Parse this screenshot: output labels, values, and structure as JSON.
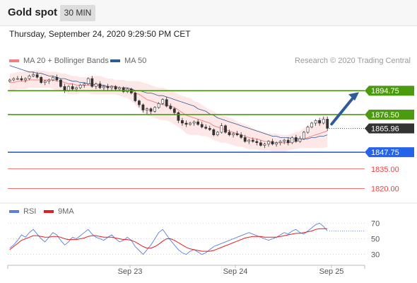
{
  "header": {
    "title": "Gold spot",
    "timeframe": "30 MIN",
    "timestamp": "Thursday, September 24, 2020 9:29:50 PM CET"
  },
  "legend": {
    "ma20": "MA 20 + Bollinger Bands",
    "ma50": "MA 50",
    "credit": "Research © 2020 Trading Central",
    "rsi": "RSI",
    "ma9": "9MA"
  },
  "colors": {
    "ma20": "#f08080",
    "ma50": "#2e5b9a",
    "band": "#fde1e1",
    "resistance": "#4c9a10",
    "support": "#2563eb",
    "support_red": "#f04040",
    "current": "#333333",
    "arrow": "#2e5b9a",
    "rsi": "#5b7fe0",
    "rsi_ma": "#e02020"
  },
  "chart_data": [
    {
      "type": "line",
      "name": "price",
      "y_range": [
        1810,
        1910
      ],
      "levels": [
        {
          "name": "resistance-2",
          "value": 1894.75,
          "label": "1894.75",
          "color": "#4c9a10",
          "style": "solid",
          "label_bg": true
        },
        {
          "name": "resistance-1",
          "value": 1876.5,
          "label": "1876.50",
          "color": "#4c9a10",
          "style": "solid",
          "label_bg": true
        },
        {
          "name": "current-price",
          "value": 1865.96,
          "label": "1865.96",
          "color": "#333333",
          "style": "dotted",
          "label_bg": true
        },
        {
          "name": "pivot",
          "value": 1847.75,
          "label": "1847.75",
          "color": "#2563eb",
          "style": "solid",
          "label_bg": true
        },
        {
          "name": "support-1",
          "value": 1835.0,
          "label": "1835.00",
          "color": "#f04040",
          "style": "solid",
          "label_bg": false
        },
        {
          "name": "support-2",
          "value": 1820.0,
          "label": "1820.00",
          "color": "#f04040",
          "style": "solid",
          "label_bg": false
        }
      ],
      "candles": [
        [
          1902,
          1904,
          1901,
          1903
        ],
        [
          1903,
          1905,
          1902,
          1904
        ],
        [
          1904,
          1906,
          1903,
          1904
        ],
        [
          1904,
          1906,
          1902,
          1903
        ],
        [
          1903,
          1905,
          1901,
          1904
        ],
        [
          1904,
          1907,
          1903,
          1906
        ],
        [
          1906,
          1909,
          1905,
          1907
        ],
        [
          1907,
          1909,
          1904,
          1905
        ],
        [
          1905,
          1906,
          1900,
          1901
        ],
        [
          1901,
          1903,
          1899,
          1902
        ],
        [
          1902,
          1904,
          1900,
          1903
        ],
        [
          1903,
          1906,
          1902,
          1905
        ],
        [
          1905,
          1907,
          1902,
          1903
        ],
        [
          1903,
          1904,
          1897,
          1898
        ],
        [
          1898,
          1900,
          1893,
          1895
        ],
        [
          1895,
          1899,
          1894,
          1898
        ],
        [
          1898,
          1900,
          1895,
          1896
        ],
        [
          1896,
          1898,
          1894,
          1897
        ],
        [
          1897,
          1900,
          1896,
          1899
        ],
        [
          1899,
          1901,
          1897,
          1900
        ],
        [
          1900,
          1905,
          1899,
          1904
        ],
        [
          1904,
          1906,
          1897,
          1898
        ],
        [
          1898,
          1901,
          1896,
          1900
        ],
        [
          1900,
          1902,
          1896,
          1897
        ],
        [
          1897,
          1899,
          1895,
          1898
        ],
        [
          1898,
          1900,
          1895,
          1897
        ],
        [
          1897,
          1899,
          1895,
          1898
        ],
        [
          1898,
          1899,
          1895,
          1896
        ],
        [
          1896,
          1898,
          1895,
          1897
        ],
        [
          1897,
          1898,
          1893,
          1894
        ],
        [
          1894,
          1897,
          1893,
          1896
        ],
        [
          1896,
          1897,
          1892,
          1893
        ],
        [
          1893,
          1894,
          1886,
          1887
        ],
        [
          1887,
          1888,
          1882,
          1884
        ],
        [
          1884,
          1885,
          1878,
          1880
        ],
        [
          1880,
          1882,
          1877,
          1881
        ],
        [
          1881,
          1882,
          1877,
          1879
        ],
        [
          1879,
          1883,
          1878,
          1882
        ],
        [
          1882,
          1886,
          1881,
          1885
        ],
        [
          1885,
          1889,
          1884,
          1888
        ],
        [
          1888,
          1890,
          1882,
          1883
        ],
        [
          1883,
          1885,
          1880,
          1881
        ],
        [
          1881,
          1882,
          1876,
          1878
        ],
        [
          1878,
          1879,
          1870,
          1872
        ],
        [
          1872,
          1874,
          1868,
          1870
        ],
        [
          1870,
          1872,
          1867,
          1869
        ],
        [
          1869,
          1871,
          1868,
          1870
        ],
        [
          1870,
          1872,
          1868,
          1871
        ],
        [
          1871,
          1873,
          1868,
          1869
        ],
        [
          1869,
          1871,
          1866,
          1867
        ],
        [
          1867,
          1869,
          1865,
          1866
        ],
        [
          1866,
          1868,
          1864,
          1865
        ],
        [
          1865,
          1866,
          1860,
          1861
        ],
        [
          1861,
          1864,
          1860,
          1863
        ],
        [
          1863,
          1870,
          1862,
          1868
        ],
        [
          1868,
          1869,
          1862,
          1863
        ],
        [
          1863,
          1865,
          1860,
          1861
        ],
        [
          1861,
          1863,
          1859,
          1862
        ],
        [
          1862,
          1864,
          1860,
          1861
        ],
        [
          1861,
          1863,
          1858,
          1859
        ],
        [
          1859,
          1861,
          1855,
          1856
        ],
        [
          1856,
          1858,
          1854,
          1857
        ],
        [
          1857,
          1859,
          1855,
          1856
        ],
        [
          1856,
          1858,
          1853,
          1855
        ],
        [
          1855,
          1857,
          1852,
          1853
        ],
        [
          1853,
          1855,
          1851,
          1854
        ],
        [
          1854,
          1857,
          1852,
          1856
        ],
        [
          1856,
          1858,
          1853,
          1854
        ],
        [
          1854,
          1856,
          1852,
          1855
        ],
        [
          1855,
          1857,
          1853,
          1856
        ],
        [
          1856,
          1858,
          1854,
          1857
        ],
        [
          1857,
          1859,
          1853,
          1855
        ],
        [
          1855,
          1860,
          1854,
          1859
        ],
        [
          1859,
          1861,
          1855,
          1856
        ],
        [
          1856,
          1860,
          1855,
          1858
        ],
        [
          1858,
          1864,
          1857,
          1863
        ],
        [
          1863,
          1868,
          1862,
          1867
        ],
        [
          1867,
          1871,
          1866,
          1870
        ],
        [
          1870,
          1873,
          1868,
          1872
        ],
        [
          1872,
          1874,
          1868,
          1870
        ],
        [
          1870,
          1875,
          1869,
          1873
        ],
        [
          1873,
          1875,
          1864,
          1866
        ]
      ],
      "ma20": [
        1901,
        1901,
        1902,
        1902,
        1902,
        1903,
        1903,
        1903,
        1903,
        1903,
        1903,
        1903,
        1902,
        1902,
        1901,
        1900,
        1900,
        1899,
        1899,
        1899,
        1899,
        1899,
        1899,
        1899,
        1898,
        1898,
        1898,
        1898,
        1897,
        1897,
        1896,
        1895,
        1893,
        1892,
        1890,
        1888,
        1887,
        1886,
        1885,
        1884,
        1884,
        1883,
        1882,
        1880,
        1878,
        1876,
        1875,
        1874,
        1873,
        1872,
        1871,
        1870,
        1868,
        1867,
        1866,
        1865,
        1864,
        1863,
        1862,
        1861,
        1860,
        1859,
        1858,
        1858,
        1857,
        1856,
        1856,
        1855,
        1855,
        1855,
        1855,
        1855,
        1856,
        1856,
        1857,
        1858,
        1859,
        1860,
        1861,
        1862,
        1863,
        1864
      ],
      "ma50": [
        1914,
        1913,
        1912,
        1911,
        1910,
        1909,
        1909,
        1908,
        1908,
        1907,
        1906,
        1906,
        1905,
        1904,
        1904,
        1903,
        1902,
        1902,
        1901,
        1901,
        1900,
        1900,
        1899,
        1899,
        1899,
        1898,
        1898,
        1898,
        1897,
        1897,
        1897,
        1896,
        1895,
        1895,
        1894,
        1893,
        1893,
        1892,
        1891,
        1891,
        1890,
        1889,
        1888,
        1887,
        1886,
        1885,
        1884,
        1883,
        1881,
        1880,
        1879,
        1877,
        1876,
        1874,
        1873,
        1872,
        1871,
        1870,
        1869,
        1868,
        1867,
        1866,
        1865,
        1864,
        1863,
        1862,
        1861,
        1860,
        1860,
        1859,
        1859,
        1859,
        1858,
        1858,
        1858,
        1858,
        1858,
        1859,
        1859,
        1860,
        1860,
        1861
      ],
      "band_upper": [
        1908,
        1908,
        1909,
        1909,
        1910,
        1910,
        1910,
        1910,
        1910,
        1910,
        1909,
        1909,
        1909,
        1908,
        1908,
        1907,
        1906,
        1906,
        1905,
        1905,
        1905,
        1906,
        1906,
        1906,
        1905,
        1904,
        1904,
        1903,
        1903,
        1903,
        1902,
        1902,
        1902,
        1902,
        1901,
        1900,
        1899,
        1898,
        1897,
        1897,
        1896,
        1895,
        1894,
        1892,
        1891,
        1890,
        1889,
        1887,
        1886,
        1884,
        1882,
        1880,
        1879,
        1877,
        1876,
        1875,
        1874,
        1873,
        1871,
        1870,
        1869,
        1868,
        1866,
        1865,
        1864,
        1863,
        1862,
        1862,
        1862,
        1861,
        1861,
        1861,
        1862,
        1863,
        1864,
        1866,
        1868,
        1870,
        1872,
        1873,
        1875,
        1876
      ],
      "band_lower": [
        1895,
        1895,
        1896,
        1896,
        1896,
        1897,
        1897,
        1897,
        1897,
        1897,
        1897,
        1896,
        1895,
        1895,
        1894,
        1892,
        1892,
        1892,
        1893,
        1893,
        1893,
        1892,
        1892,
        1892,
        1892,
        1892,
        1892,
        1892,
        1891,
        1890,
        1889,
        1887,
        1884,
        1881,
        1878,
        1876,
        1875,
        1874,
        1873,
        1872,
        1872,
        1871,
        1869,
        1867,
        1865,
        1862,
        1861,
        1861,
        1861,
        1860,
        1860,
        1859,
        1857,
        1856,
        1855,
        1855,
        1854,
        1853,
        1852,
        1852,
        1851,
        1850,
        1850,
        1850,
        1849,
        1849,
        1849,
        1848,
        1848,
        1848,
        1848,
        1849,
        1850,
        1850,
        1851,
        1851,
        1851,
        1851,
        1851,
        1851,
        1851,
        1852
      ],
      "arrow_target": 1894.75
    },
    {
      "type": "line",
      "name": "rsi",
      "y_range": [
        16,
        84
      ],
      "ticks": [
        70,
        50,
        30
      ],
      "rsi": [
        38,
        42,
        48,
        55,
        52,
        58,
        62,
        56,
        50,
        46,
        52,
        58,
        55,
        48,
        42,
        46,
        52,
        50,
        54,
        58,
        62,
        56,
        52,
        50,
        48,
        52,
        55,
        50,
        46,
        48,
        52,
        48,
        40,
        35,
        30,
        36,
        42,
        50,
        58,
        62,
        55,
        48,
        42,
        36,
        32,
        30,
        34,
        36,
        33,
        30,
        32,
        36,
        40,
        42,
        44,
        46,
        48,
        50,
        52,
        54,
        56,
        58,
        56,
        54,
        52,
        50,
        48,
        50,
        52,
        55,
        58,
        56,
        60,
        62,
        58,
        56,
        60,
        64,
        68,
        70,
        66,
        60
      ],
      "rsi_ma": [
        36,
        40,
        44,
        48,
        50,
        52,
        54,
        54,
        53,
        52,
        52,
        53,
        53,
        52,
        50,
        49,
        49,
        49,
        50,
        51,
        53,
        54,
        54,
        53,
        52,
        52,
        52,
        51,
        50,
        49,
        49,
        48,
        46,
        43,
        40,
        38,
        38,
        40,
        43,
        47,
        50,
        50,
        48,
        45,
        42,
        39,
        37,
        36,
        35,
        34,
        34,
        34,
        35,
        37,
        39,
        41,
        43,
        45,
        47,
        49,
        51,
        52,
        53,
        53,
        53,
        52,
        52,
        52,
        52,
        53,
        54,
        55,
        56,
        57,
        57,
        58,
        59,
        60,
        62,
        63,
        63,
        63
      ]
    }
  ],
  "xaxis": {
    "labels": [
      "Sep 23",
      "Sep 24",
      "Sep 25"
    ]
  }
}
